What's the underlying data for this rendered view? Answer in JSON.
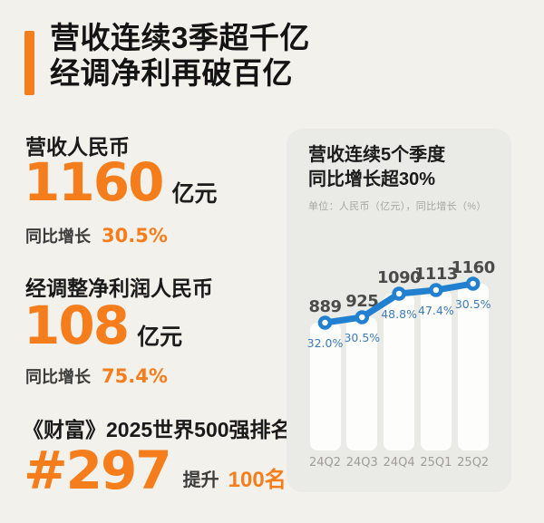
{
  "page": {
    "background_color": "#f2f1ec",
    "accent_color": "#f57d1c",
    "line_color": "#2180d0"
  },
  "header": {
    "title_line1": "营收连续3季超千亿",
    "title_line2": "经调净利再破百亿"
  },
  "stats": [
    {
      "label": "营收人民币",
      "value": "1160",
      "unit": "亿元",
      "growth_label": "同比增长",
      "growth_value": "30.5%"
    },
    {
      "label": "经调整净利润人民币",
      "value": "108",
      "unit": "亿元",
      "growth_label": "同比增长",
      "growth_value": "75.4%"
    },
    {
      "label": "《财富》2025世界500强排名",
      "value": "#297",
      "suffix_label": "提升",
      "suffix_value": "100名"
    }
  ],
  "card": {
    "title_line1": "营收连续5个季度",
    "title_line2": "同比增长超30%",
    "subtitle": "单位：人民币（亿元），同比增长（%）"
  },
  "chart_data": {
    "type": "bar",
    "title": "营收连续5个季度同比增长超30%",
    "subtitle": "单位：人民币（亿元），同比增长（%）",
    "categories": [
      "24Q2",
      "24Q3",
      "24Q4",
      "25Q1",
      "25Q2"
    ],
    "series": [
      {
        "name": "营收（亿元）",
        "type": "bar",
        "values": [
          889,
          925,
          1090,
          1113,
          1160
        ]
      },
      {
        "name": "同比增长（%）",
        "type": "line",
        "values": [
          32.0,
          30.5,
          48.8,
          47.4,
          30.5
        ],
        "labels": [
          "32.0%",
          "30.5%",
          "48.8%",
          "47.4%",
          "30.5%"
        ]
      }
    ],
    "ylim": [
      0,
      1260
    ],
    "grid": false,
    "legend": false,
    "colors": {
      "bar": "#fdfdfb",
      "line": "#2180d0",
      "marker_fill": "#ffffff",
      "value_label": "#4b4b49",
      "pct_label": "#3d7cb8",
      "axis_label": "#9e9d99"
    }
  }
}
